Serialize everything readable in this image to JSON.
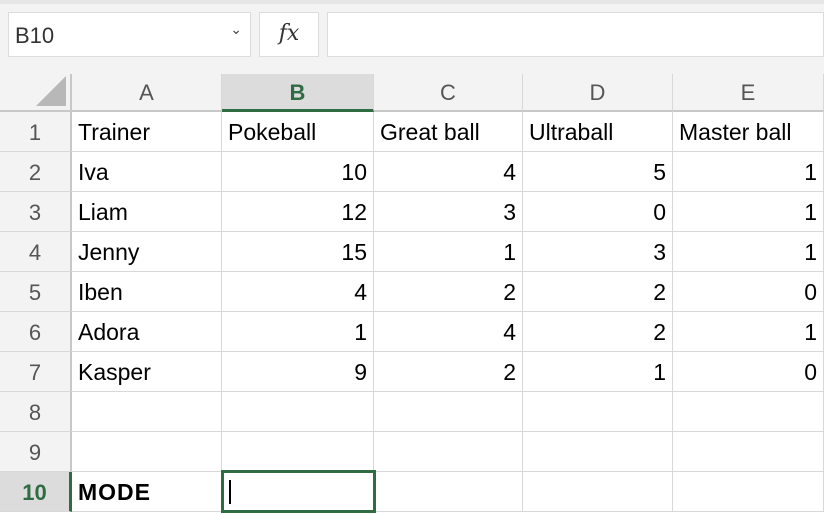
{
  "name_box": {
    "value": "B10",
    "icon": "chevron-down-icon"
  },
  "formula_bar": {
    "fx_label": "fx",
    "value": ""
  },
  "columns": [
    "A",
    "B",
    "C",
    "D",
    "E"
  ],
  "selected_column": "B",
  "rows": [
    "1",
    "2",
    "3",
    "4",
    "5",
    "6",
    "7",
    "8",
    "9",
    "10"
  ],
  "selected_row": "10",
  "cells": [
    [
      "Trainer",
      "Pokeball",
      "Great ball",
      "Ultraball",
      "Master ball"
    ],
    [
      "Iva",
      "10",
      "4",
      "5",
      "1"
    ],
    [
      "Liam",
      "12",
      "3",
      "0",
      "1"
    ],
    [
      "Jenny",
      "15",
      "1",
      "3",
      "1"
    ],
    [
      "Iben",
      "4",
      "2",
      "2",
      "0"
    ],
    [
      "Adora",
      "1",
      "4",
      "2",
      "1"
    ],
    [
      "Kasper",
      "9",
      "2",
      "1",
      "0"
    ],
    [
      "",
      "",
      "",
      "",
      ""
    ],
    [
      "",
      "",
      "",
      "",
      ""
    ],
    [
      "MODE",
      "",
      "",
      "",
      ""
    ]
  ],
  "accent_color": "#2f6b43"
}
